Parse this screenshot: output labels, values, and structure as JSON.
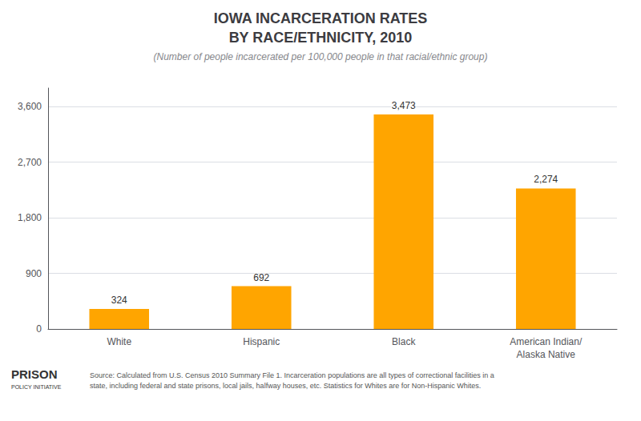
{
  "chart_data": {
    "type": "bar",
    "title": "IOWA INCARCERATION RATES\nBY RACE/ETHNICITY, 2010",
    "subtitle": "(Number of people incarcerated per 100,000 people in that racial/ethnic group)",
    "categories": [
      "White",
      "Hispanic",
      "Black",
      "American Indian/\nAlaska Native"
    ],
    "values": [
      324,
      692,
      3473,
      2274
    ],
    "value_labels": [
      "324",
      "692",
      "3,473",
      "2,274"
    ],
    "data_labels": true,
    "color": "#FFA500",
    "ylim": [
      0,
      3900
    ],
    "yticks": [
      0,
      900,
      {
        "value": 1800,
        "label": "1,800"
      },
      {
        "value": 2700,
        "label": "2,700"
      },
      {
        "value": 3600,
        "label": "3,600"
      }
    ],
    "grid": true,
    "annotations": [
      "Source: Calculated from U.S. Census 2010 Summary File 1. Incarceration populations are all types of correctional facilities in a\nstate, including federal and state prisons, local jails, halfway houses, etc. Statistics for Whites are for Non-Hispanic Whites.",
      "PRISON",
      "POLICY INITIATIVE"
    ]
  }
}
